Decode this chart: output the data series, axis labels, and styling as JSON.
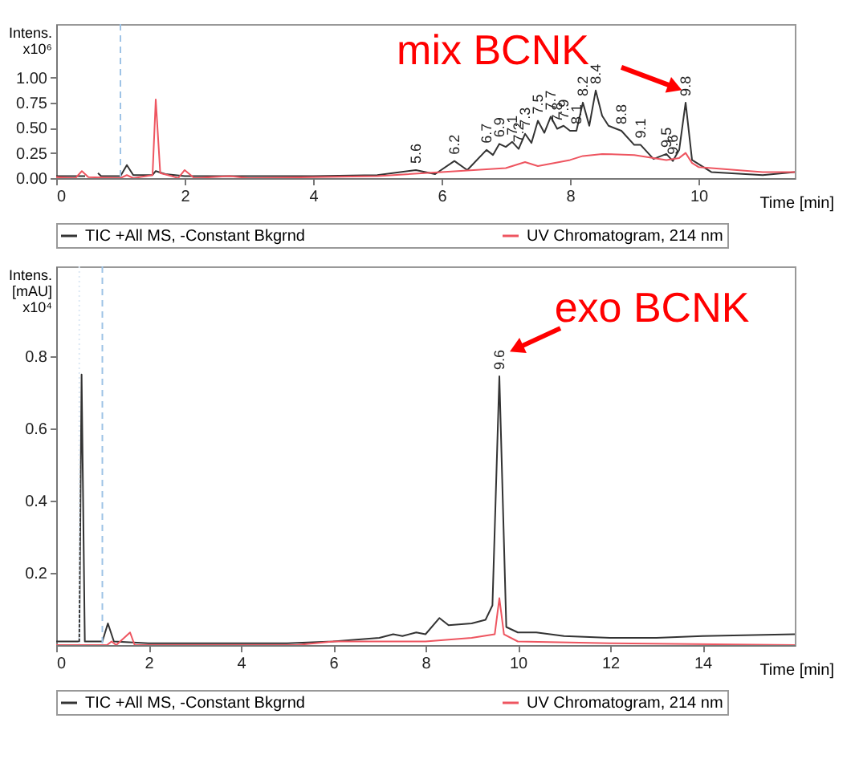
{
  "chart_data": [
    {
      "type": "line",
      "xlabel": "Time [min]",
      "ylabel": "Intens. x10⁶",
      "legend": "bottom",
      "grid": false,
      "line_style": "solid",
      "marker": "none",
      "xlim": [
        0,
        11.5
      ],
      "xticks": [
        0,
        2,
        4,
        6,
        8,
        10
      ],
      "ylim": [
        0,
        1.53
      ],
      "yticks": [
        {
          "value": 0,
          "label": "0.00"
        },
        {
          "value": 0.25,
          "label": "0.25"
        },
        {
          "value": 0.5,
          "label": "0.50"
        },
        {
          "value": 0.75,
          "label": "0.75"
        },
        {
          "value": 1,
          "label": "1.00"
        }
      ],
      "ref_lines": [
        {
          "axis": "x",
          "value": 1,
          "color": "#9ec3e6",
          "line_style": "dashed"
        }
      ],
      "series": [
        {
          "name": "TIC +All MS, -Constant Bkgrnd",
          "color": "#333333",
          "x": [
            0,
            0.45,
            0.5,
            0.58,
            0.65,
            0.7,
            1.0,
            1.1,
            1.2,
            1.5,
            1.55,
            1.7,
            2.0,
            4.0,
            5.0,
            5.6,
            5.9,
            6.2,
            6.4,
            6.7,
            6.8,
            6.9,
            7.0,
            7.1,
            7.2,
            7.3,
            7.4,
            7.5,
            7.6,
            7.7,
            7.8,
            7.9,
            8.0,
            8.1,
            8.2,
            8.3,
            8.4,
            8.5,
            8.6,
            8.8,
            9.0,
            9.1,
            9.3,
            9.5,
            9.6,
            9.7,
            9.8,
            9.9,
            10.2,
            11.0,
            11.5
          ],
          "values": [
            0.02,
            0.02,
            null,
            null,
            0.05,
            0.02,
            0.02,
            0.13,
            0.03,
            0.03,
            0.07,
            0.04,
            0.02,
            0.02,
            0.03,
            0.08,
            0.04,
            0.17,
            0.08,
            0.28,
            0.23,
            0.34,
            0.31,
            0.36,
            0.29,
            0.44,
            0.35,
            0.57,
            0.45,
            0.61,
            0.49,
            0.52,
            0.47,
            0.47,
            0.75,
            0.52,
            0.87,
            0.62,
            0.52,
            0.47,
            0.33,
            0.33,
            0.19,
            0.24,
            0.17,
            0.28,
            0.75,
            0.18,
            0.06,
            0.03,
            0.06
          ]
        },
        {
          "name": "UV Chromatogram, 214 nm",
          "color": "#ee5560",
          "x": [
            0,
            0.3,
            0.4,
            0.5,
            1.0,
            1.1,
            1.2,
            1.5,
            1.55,
            1.62,
            1.8,
            1.9,
            2.0,
            2.15,
            2.7,
            3.0,
            5.0,
            6.0,
            7.0,
            7.3,
            7.5,
            8.0,
            8.2,
            8.5,
            9.0,
            9.5,
            9.7,
            9.8,
            9.9,
            10.0,
            11.0,
            11.5
          ],
          "values": [
            0.01,
            0.0,
            0.07,
            0.01,
            0.0,
            0.03,
            0.0,
            0.03,
            0.78,
            0.05,
            0.02,
            0.0,
            0.08,
            0.0,
            0.02,
            0.0,
            0.02,
            0.06,
            0.1,
            0.16,
            0.12,
            0.18,
            0.22,
            0.24,
            0.23,
            0.18,
            0.2,
            0.25,
            0.15,
            0.11,
            0.06,
            0.06
          ]
        }
      ],
      "annotations": [
        {
          "text": "mix BCNK",
          "x": 9.8,
          "y": 0.75
        },
        {
          "text": "5.6",
          "x": 5.6,
          "y": 0.08
        },
        {
          "text": "6.2",
          "x": 6.2,
          "y": 0.17
        },
        {
          "text": "6.7",
          "x": 6.7,
          "y": 0.28
        },
        {
          "text": "6.9",
          "x": 6.9,
          "y": 0.34
        },
        {
          "text": "7.1",
          "x": 7.1,
          "y": 0.36
        },
        {
          "text": "7.2",
          "x": 7.2,
          "y": 0.29
        },
        {
          "text": "7.3",
          "x": 7.3,
          "y": 0.44
        },
        {
          "text": "7.5",
          "x": 7.5,
          "y": 0.57
        },
        {
          "text": "7.7",
          "x": 7.7,
          "y": 0.61
        },
        {
          "text": "7.8",
          "x": 7.8,
          "y": 0.49
        },
        {
          "text": "7.9",
          "x": 7.9,
          "y": 0.52
        },
        {
          "text": "8.1",
          "x": 8.1,
          "y": 0.47
        },
        {
          "text": "8.2",
          "x": 8.2,
          "y": 0.75
        },
        {
          "text": "8.4",
          "x": 8.4,
          "y": 0.87
        },
        {
          "text": "8.8",
          "x": 8.8,
          "y": 0.47
        },
        {
          "text": "9.1",
          "x": 9.1,
          "y": 0.33
        },
        {
          "text": "9.5",
          "x": 9.5,
          "y": 0.24
        },
        {
          "text": "9.6",
          "x": 9.6,
          "y": 0.17
        },
        {
          "text": "9.8",
          "x": 9.8,
          "y": 0.75
        }
      ]
    },
    {
      "type": "line",
      "xlabel": "Time [min]",
      "ylabel": "Intens. [mAU] x10⁴",
      "legend": "bottom",
      "grid": false,
      "line_style": "solid",
      "marker": "none",
      "xlim": [
        0,
        16
      ],
      "xticks": [
        0,
        2,
        4,
        6,
        8,
        10,
        12,
        14
      ],
      "ylim": [
        0,
        1.05
      ],
      "yticks": [
        0.2,
        0.4,
        0.6,
        0.8
      ],
      "ref_lines": [
        {
          "axis": "x",
          "value": 0.5,
          "color": "#dce8f4",
          "line_style": "dotted"
        },
        {
          "axis": "x",
          "value": 1,
          "color": "#9ec3e6",
          "line_style": "dashed"
        }
      ],
      "series": [
        {
          "name": "TIC +All MS, -Constant Bkgrnd",
          "color": "#333333",
          "x": [
            0,
            0.5,
            0.55,
            0.62,
            1.0,
            1.12,
            1.25,
            2.0,
            5.0,
            6.0,
            7.0,
            7.3,
            7.5,
            7.8,
            8.0,
            8.3,
            8.5,
            9.0,
            9.3,
            9.45,
            9.6,
            9.75,
            10.0,
            10.4,
            11.0,
            12.0,
            13.0,
            14.0,
            16.0
          ],
          "values": [
            0.01,
            0.01,
            0.75,
            0.01,
            0.01,
            0.06,
            0.01,
            0.005,
            0.005,
            0.01,
            0.02,
            0.03,
            0.025,
            0.035,
            0.03,
            0.075,
            0.055,
            0.06,
            0.07,
            0.11,
            0.745,
            0.05,
            0.035,
            0.035,
            0.025,
            0.02,
            0.02,
            0.025,
            0.03
          ]
        },
        {
          "name": "UV Chromatogram, 214 nm",
          "color": "#ee5560",
          "x": [
            0,
            1.1,
            1.2,
            1.3,
            1.6,
            1.7,
            5.2,
            6.0,
            8.0,
            9.0,
            9.5,
            9.6,
            9.7,
            10.0,
            12.0,
            16.0
          ],
          "values": [
            0.0,
            0.0,
            0.01,
            0.0,
            0.035,
            0.0,
            0.0,
            0.01,
            0.01,
            0.02,
            0.03,
            0.13,
            0.03,
            0.01,
            0.005,
            0.0
          ]
        }
      ],
      "annotations": [
        {
          "text": "exo BCNK",
          "x": 9.6,
          "y": 0.745
        },
        {
          "text": "9.6",
          "x": 9.6,
          "y": 0.745
        }
      ]
    }
  ]
}
